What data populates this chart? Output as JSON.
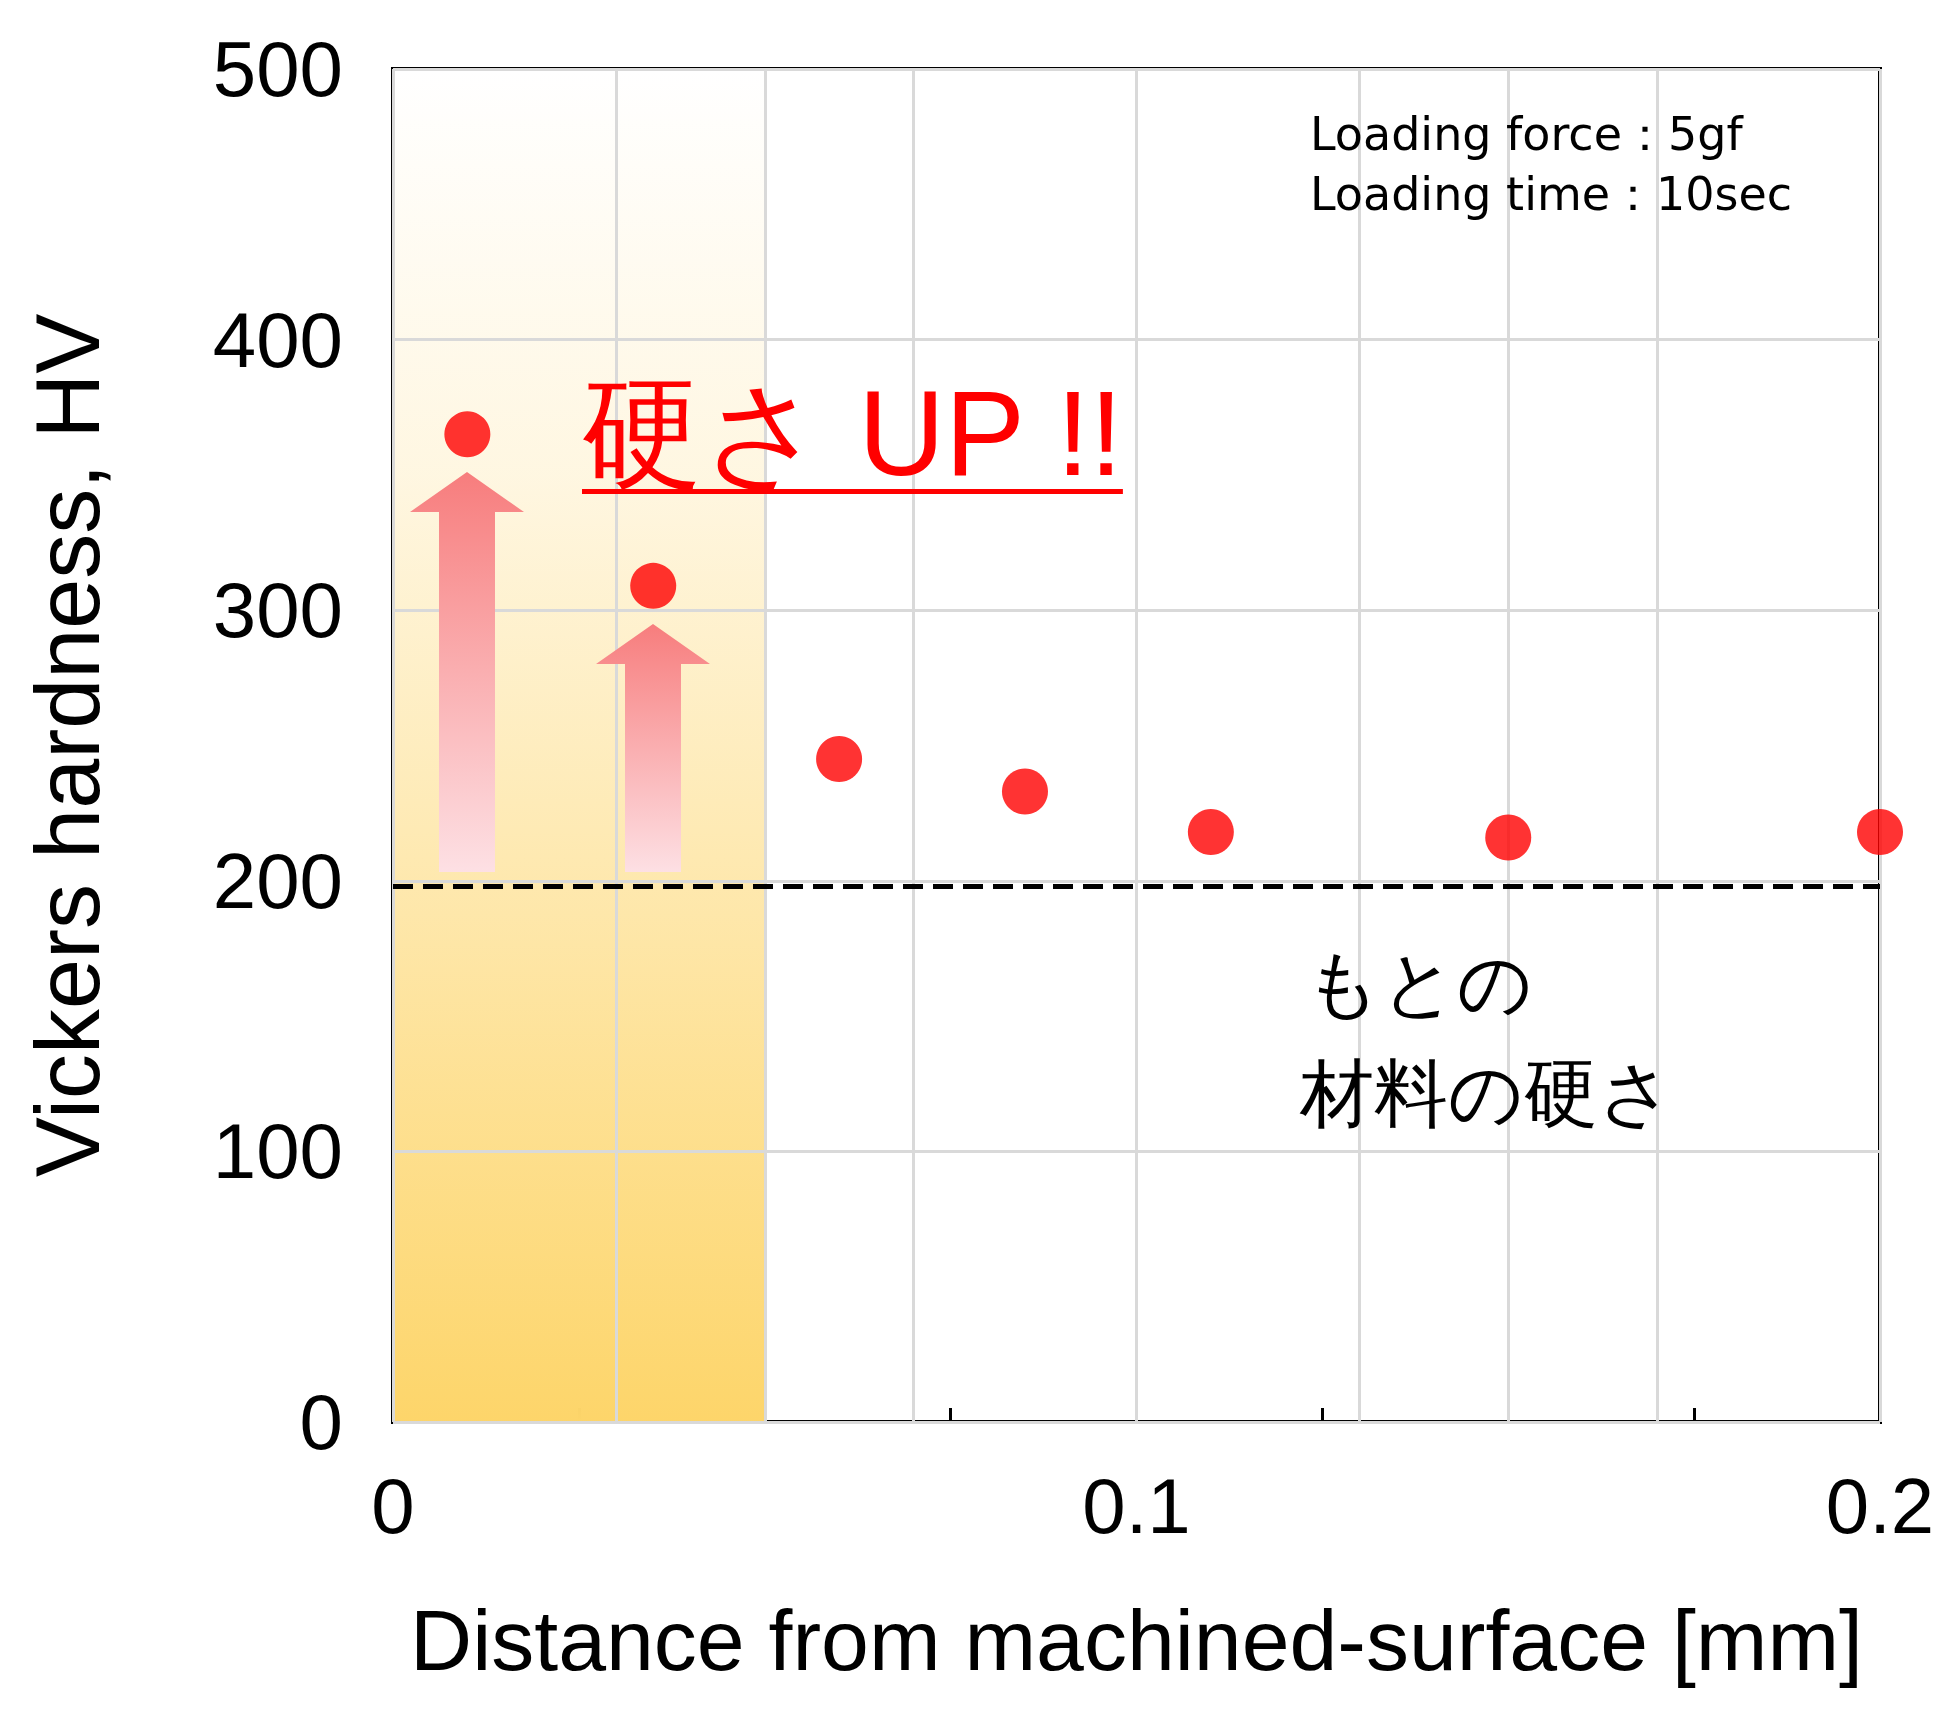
{
  "chart_data": {
    "type": "scatter",
    "xlabel": "Distance from machined-surface [mm]",
    "ylabel": "Vickers hardness, HV",
    "x": [
      0.01,
      0.035,
      0.06,
      0.085,
      0.11,
      0.15,
      0.2
    ],
    "series": [
      {
        "color": "#ff0000",
        "values": [
          365,
          309,
          245,
          233,
          218,
          216,
          218
        ]
      }
    ],
    "xlim": [
      0,
      0.2
    ],
    "ylim": [
      0,
      500
    ],
    "xticks": [
      0,
      {
        "value": 0.025,
        "label": null
      },
      {
        "value": 0.05,
        "label": null
      },
      {
        "value": 0.075,
        "label": null
      },
      0.1,
      {
        "value": 0.125,
        "label": null
      },
      {
        "value": 0.15,
        "label": null
      },
      {
        "value": 0.175,
        "label": null
      },
      0.2
    ],
    "yticks": [
      0,
      100,
      200,
      300,
      400,
      500
    ],
    "grid": true,
    "marker": "circle",
    "ref_lines": [
      {
        "axis": "y",
        "value": 198,
        "color": "#000000",
        "line_style": "dashed"
      }
    ],
    "bands": [
      {
        "axis": "x",
        "from": 0,
        "to": 0.05,
        "color": "#fdd56a"
      }
    ],
    "annotations": [
      "Loading force：5gf\nLoading time：10sec",
      "硬さ UP !!",
      "もとの",
      "材料の硬さ"
    ]
  }
}
